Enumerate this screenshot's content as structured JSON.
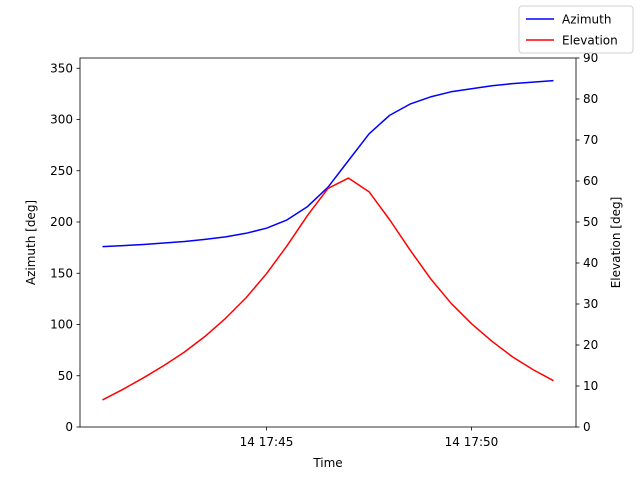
{
  "chart_data": {
    "type": "line",
    "xlabel": "Time",
    "ylabel_left": "Azimuth [deg]",
    "ylabel_right": "Elevation [deg]",
    "x_tick_labels": [
      "14 17:45",
      "14 17:50"
    ],
    "x": [
      "17:41.0",
      "17:41.5",
      "17:42.0",
      "17:42.5",
      "17:43.0",
      "17:43.5",
      "17:44.0",
      "17:44.5",
      "17:45.0",
      "17:45.5",
      "17:46.0",
      "17:46.5",
      "17:47.0",
      "17:47.5",
      "17:48.0",
      "17:48.5",
      "17:49.0",
      "17:49.5",
      "17:50.0",
      "17:50.5",
      "17:51.0",
      "17:51.5",
      "17:52.0"
    ],
    "y_left_ticks": [
      0,
      50,
      100,
      150,
      200,
      250,
      300,
      350
    ],
    "y_right_ticks": [
      0,
      10,
      20,
      30,
      40,
      50,
      60,
      70,
      80,
      90
    ],
    "ylim_left": [
      0,
      360
    ],
    "ylim_right": [
      0,
      90
    ],
    "series": [
      {
        "name": "Azimuth",
        "color": "#0000ff",
        "axis": "left",
        "values": [
          176,
          177,
          178,
          179.5,
          181,
          183,
          185.5,
          189,
          194,
          202,
          215,
          234,
          260,
          286,
          304,
          315,
          322,
          327,
          330,
          333,
          335,
          336.5,
          338
        ]
      },
      {
        "name": "Elevation",
        "color": "#ff0000",
        "axis": "right",
        "values": [
          6.6,
          9.2,
          12,
          15,
          18.3,
          22.1,
          26.5,
          31.5,
          37.4,
          44.2,
          51.6,
          58.2,
          60.7,
          57.4,
          50.6,
          43.2,
          36.2,
          30.2,
          25.2,
          20.9,
          17.1,
          14,
          11.3
        ]
      }
    ],
    "legend_position": "top-right",
    "grid": false
  }
}
